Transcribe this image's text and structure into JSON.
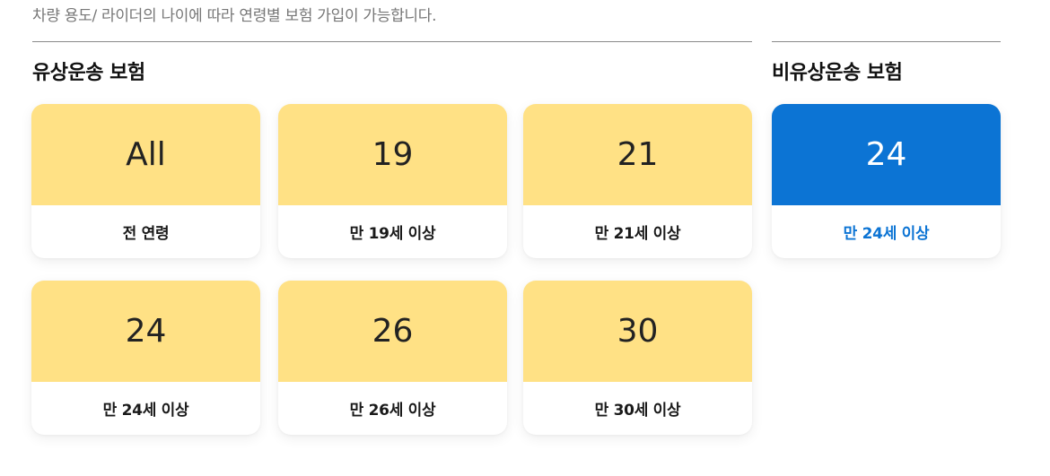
{
  "intro": "차량 용도/ 라이더의 나이에 따라 연령별 보험 가입이 가능합니다.",
  "colors": {
    "card_yellow": "#FFE185",
    "card_blue": "#0C74D4",
    "selected_text": "#0C74D4",
    "text_dark": "#1a1a1a"
  },
  "paid": {
    "title": "유상운송 보험",
    "cards": [
      {
        "age": "All",
        "label": "전 연령"
      },
      {
        "age": "19",
        "label": "만 19세 이상"
      },
      {
        "age": "21",
        "label": "만 21세 이상"
      },
      {
        "age": "24",
        "label": "만 24세 이상"
      },
      {
        "age": "26",
        "label": "만 26세 이상"
      },
      {
        "age": "30",
        "label": "만 30세 이상"
      }
    ]
  },
  "nonpaid": {
    "title": "비유상운송 보험",
    "cards": [
      {
        "age": "24",
        "label": "만 24세 이상",
        "selected": true
      }
    ]
  }
}
